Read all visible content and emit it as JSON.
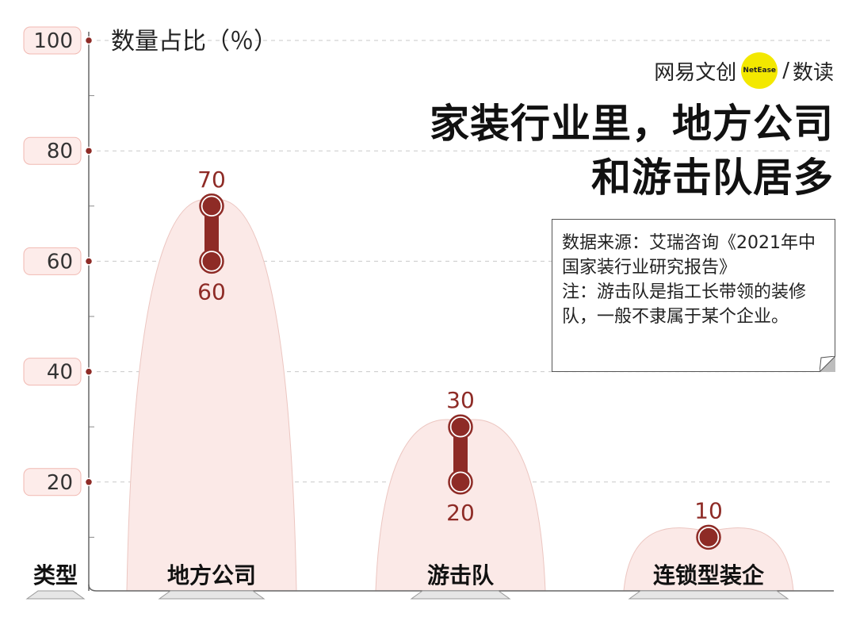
{
  "brand": {
    "name": "网易文创",
    "badge_text": "NetEase",
    "separator": "/",
    "product": "数读"
  },
  "title_lines": [
    "家装行业里，地方公司",
    "和游击队居多"
  ],
  "note": {
    "source": "数据来源：艾瑞咨询《2021年中国家装行业研究报告》",
    "remark": "注：游击队是指工长带领的装修队，一般不隶属于某个企业。"
  },
  "colors": {
    "accent": "#8e2b26",
    "bell_fill": "#fbe9e7",
    "tick_badge": "#fdecea"
  },
  "chart_data": {
    "type": "range",
    "title": "家装行业里，地方公司和游击队居多",
    "ylabel": "数量占比（％）",
    "xlabel": "类型",
    "ylim": [
      10,
      100
    ],
    "yticks": [
      20,
      40,
      60,
      80,
      100
    ],
    "grid": true,
    "categories": [
      "地方公司",
      "游击队",
      "连锁型装企"
    ],
    "ranges": [
      {
        "category": "地方公司",
        "low": 60,
        "high": 70
      },
      {
        "category": "游击队",
        "low": 20,
        "high": 30
      },
      {
        "category": "连锁型装企",
        "low": 10,
        "high": 10
      }
    ]
  }
}
